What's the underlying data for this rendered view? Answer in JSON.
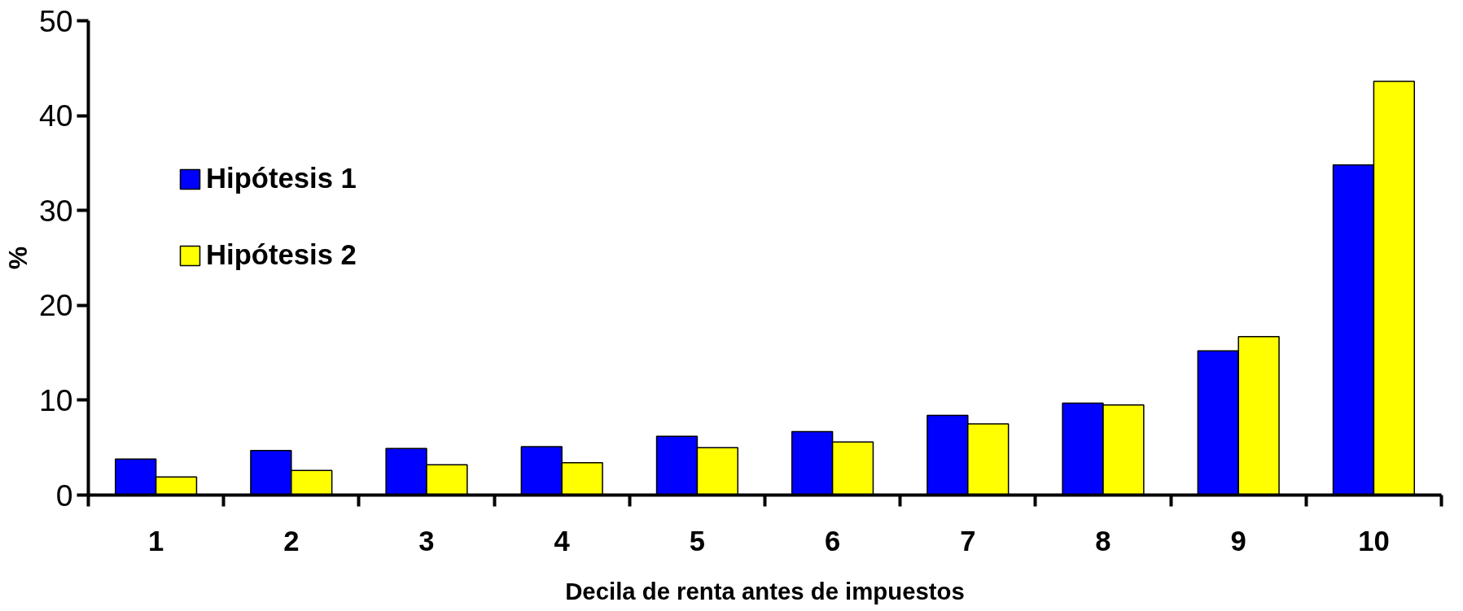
{
  "chart_data": {
    "type": "bar",
    "xlabel": "Decila de renta antes de impuestos",
    "ylabel": "%",
    "categories": [
      "1",
      "2",
      "3",
      "4",
      "5",
      "6",
      "7",
      "8",
      "9",
      "10"
    ],
    "series": [
      {
        "name": "Hipótesis 1",
        "color": "#0000ff",
        "values": [
          3.8,
          4.7,
          4.9,
          5.1,
          6.2,
          6.7,
          8.4,
          9.7,
          15.2,
          34.8
        ]
      },
      {
        "name": "Hipótesis 2",
        "color": "#ffff00",
        "values": [
          1.9,
          2.6,
          3.2,
          3.4,
          5.0,
          5.6,
          7.5,
          9.5,
          16.7,
          43.6
        ]
      }
    ],
    "ylim": [
      0,
      50
    ],
    "yticks": [
      0,
      10,
      20,
      30,
      40,
      50
    ],
    "grid": false,
    "legend": "top left"
  }
}
